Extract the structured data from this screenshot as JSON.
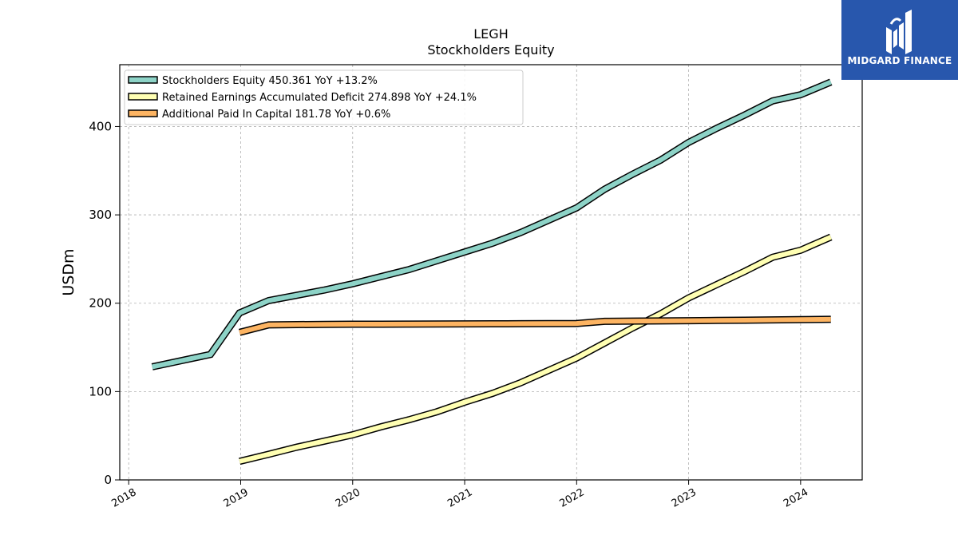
{
  "chart_data": {
    "type": "line",
    "title": "LEGH",
    "subtitle": "Stockholders  Equity",
    "ylabel": "USDm",
    "ylim": [
      0,
      470
    ],
    "xlim": [
      2017.92,
      2024.55
    ],
    "yticks": [
      0,
      100,
      200,
      300,
      400
    ],
    "xticks": [
      2018,
      2019,
      2020,
      2021,
      2022,
      2023,
      2024
    ],
    "grid": true,
    "legend_position": "top-left",
    "series": [
      {
        "name": "Stockholders Equity",
        "legend_label": "Stockholders Equity  450.361 YoY +13.2%",
        "color": "#8dd3c7",
        "points": [
          [
            2018.21,
            128
          ],
          [
            2018.47,
            135
          ],
          [
            2018.73,
            142
          ],
          [
            2018.99,
            189
          ],
          [
            2019.25,
            203
          ],
          [
            2019.5,
            209
          ],
          [
            2019.75,
            215
          ],
          [
            2020.0,
            222
          ],
          [
            2020.25,
            230
          ],
          [
            2020.5,
            238
          ],
          [
            2020.75,
            248
          ],
          [
            2021.0,
            258
          ],
          [
            2021.25,
            268
          ],
          [
            2021.5,
            280
          ],
          [
            2021.75,
            294
          ],
          [
            2022.0,
            308
          ],
          [
            2022.25,
            329
          ],
          [
            2022.5,
            346
          ],
          [
            2022.75,
            362
          ],
          [
            2023.0,
            382
          ],
          [
            2023.25,
            398
          ],
          [
            2023.5,
            413
          ],
          [
            2023.75,
            429
          ],
          [
            2024.0,
            436
          ],
          [
            2024.27,
            450.361
          ]
        ]
      },
      {
        "name": "Retained Earnings Accumulated Deficit",
        "legend_label": "Retained Earnings Accumulated Deficit  274.898 YoY +24.1%",
        "color": "#ffffb3",
        "points": [
          [
            2018.99,
            21
          ],
          [
            2019.25,
            29
          ],
          [
            2019.5,
            37
          ],
          [
            2019.75,
            44
          ],
          [
            2020.0,
            51
          ],
          [
            2020.25,
            60
          ],
          [
            2020.5,
            68
          ],
          [
            2020.75,
            77
          ],
          [
            2021.0,
            88
          ],
          [
            2021.25,
            98
          ],
          [
            2021.5,
            110
          ],
          [
            2021.75,
            124
          ],
          [
            2022.0,
            138
          ],
          [
            2022.25,
            155
          ],
          [
            2022.5,
            172
          ],
          [
            2022.75,
            188
          ],
          [
            2023.0,
            206
          ],
          [
            2023.25,
            221
          ],
          [
            2023.5,
            236
          ],
          [
            2023.75,
            252
          ],
          [
            2024.0,
            260
          ],
          [
            2024.27,
            274.898
          ]
        ]
      },
      {
        "name": "Additional Paid In Capital",
        "legend_label": "Additional Paid In Capital  181.78 YoY +0.6%",
        "color": "#fdb462",
        "points": [
          [
            2018.99,
            167
          ],
          [
            2019.25,
            175.5
          ],
          [
            2019.5,
            175.8
          ],
          [
            2019.75,
            176
          ],
          [
            2020.0,
            176.2
          ],
          [
            2020.25,
            176.3
          ],
          [
            2020.5,
            176.4
          ],
          [
            2020.75,
            176.5
          ],
          [
            2021.0,
            176.6
          ],
          [
            2021.25,
            176.7
          ],
          [
            2021.5,
            176.8
          ],
          [
            2021.75,
            176.9
          ],
          [
            2022.0,
            177
          ],
          [
            2022.25,
            179.5
          ],
          [
            2022.5,
            179.8
          ],
          [
            2022.75,
            180
          ],
          [
            2023.0,
            180.2
          ],
          [
            2023.25,
            180.5
          ],
          [
            2023.5,
            180.8
          ],
          [
            2023.75,
            181.1
          ],
          [
            2024.0,
            181.4
          ],
          [
            2024.27,
            181.78
          ]
        ]
      }
    ]
  },
  "logo": {
    "text": "MIDGARD FINANCE",
    "background": "#2857ad"
  }
}
